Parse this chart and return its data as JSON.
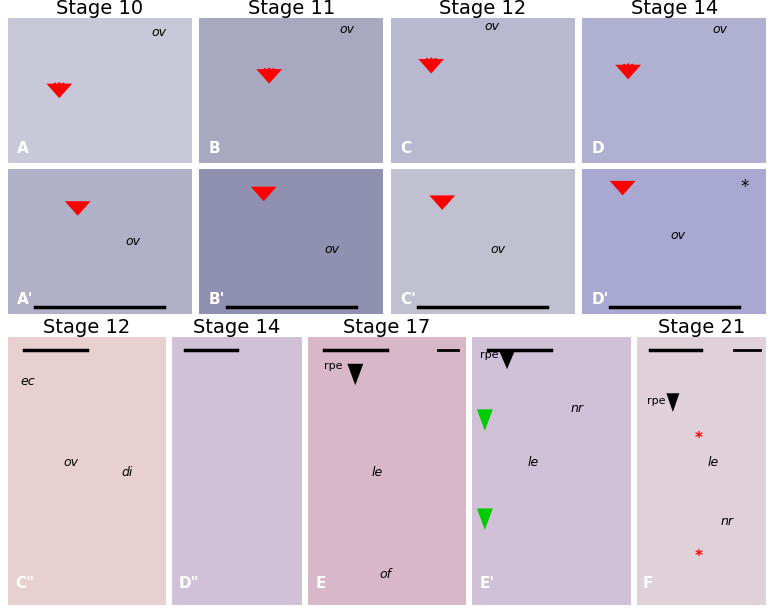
{
  "top_row_titles": [
    "Stage 10",
    "Stage 11",
    "Stage 12",
    "Stage 14"
  ],
  "bottom_row_titles": [
    "Stage 12",
    "Stage 14",
    "Stage 17",
    "Stage 21"
  ],
  "top_panel_labels_row1": [
    "A",
    "B",
    "C",
    "D"
  ],
  "top_panel_labels_row2": [
    "A'",
    "B'",
    "C'",
    "D'"
  ],
  "bottom_panel_labels": [
    "C\"",
    "D\"",
    "E",
    "E'",
    "F"
  ],
  "panel_texts_row1": [
    {
      "ov": [
        0.82,
        0.12
      ]
    },
    {
      "ov": [
        0.82,
        0.1
      ]
    },
    {
      "ov": [
        0.5,
        0.07
      ]
    },
    {
      "ov": [
        0.75,
        0.1
      ]
    }
  ],
  "panel_texts_row2": [
    {
      "ov": [
        0.72,
        0.35
      ]
    },
    {
      "ov": [
        0.78,
        0.42
      ],
      "asterisk": false
    },
    {
      "ov": [
        0.62,
        0.38
      ]
    },
    {
      "ov": [
        0.55,
        0.52
      ],
      "asterisk": true
    }
  ],
  "bg_color_top": "#f0eee8",
  "bg_color_bottom_left": "#f5e8e8",
  "bg_color_bottom_mid_e": "#f5e0e8",
  "bg_color_bottom_right": "#f0e8e8",
  "fig_bg": "#ffffff",
  "title_fontsize": 14,
  "label_fontsize": 11,
  "annotation_fontsize": 9
}
